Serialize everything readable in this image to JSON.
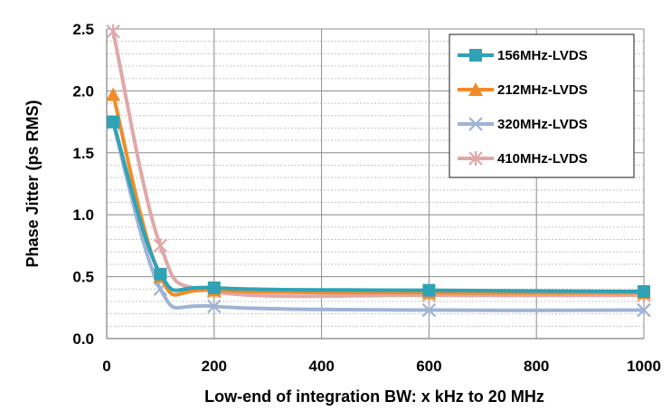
{
  "chart_data": {
    "type": "line",
    "xlabel": "Low-end of integration BW: x kHz to 20 MHz",
    "ylabel": "Phase Jitter (ps RMS)",
    "xlim": [
      0,
      1000
    ],
    "ylim": [
      0,
      2.5
    ],
    "x_ticks": [
      "0",
      "200",
      "400",
      "600",
      "800",
      "1000"
    ],
    "y_ticks": [
      "0.0",
      "0.5",
      "1.0",
      "1.5",
      "2.0",
      "2.5"
    ],
    "grid": true,
    "legend_position": "top-right",
    "series": [
      {
        "name": "156MHz-LVDS",
        "color": "#2fa3b5",
        "marker": "square",
        "x": [
          12,
          100,
          200,
          600,
          1000
        ],
        "y": [
          1.75,
          0.52,
          0.41,
          0.39,
          0.38
        ]
      },
      {
        "name": "212MHz-LVDS",
        "color": "#f28c28",
        "marker": "triangle",
        "x": [
          12,
          100,
          200,
          600,
          1000
        ],
        "y": [
          1.97,
          0.5,
          0.39,
          0.37,
          0.37
        ]
      },
      {
        "name": "320MHz-LVDS",
        "color": "#9fb3d6",
        "marker": "x",
        "x": [
          12,
          100,
          200,
          600,
          1000
        ],
        "y": [
          1.74,
          0.4,
          0.26,
          0.23,
          0.23
        ]
      },
      {
        "name": "410MHz-LVDS",
        "color": "#e0a8a8",
        "marker": "star",
        "x": [
          12,
          100,
          200,
          600,
          1000
        ],
        "y": [
          2.48,
          0.75,
          0.38,
          0.35,
          0.35
        ]
      }
    ]
  }
}
